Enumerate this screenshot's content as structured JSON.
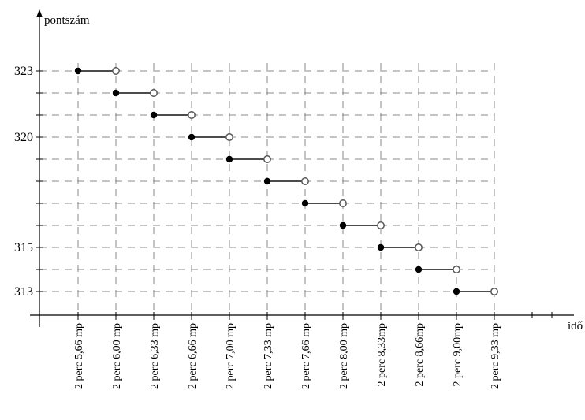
{
  "chart_data": {
    "type": "step",
    "title": "",
    "xlabel": "idő",
    "ylabel": "pontszám",
    "grid": true,
    "x_categories": [
      "2 perc 5,66 mp",
      "2 perc 6,00 mp",
      "2 perc 6,33 mp",
      "2 perc 6,66 mp",
      "2 perc 7,00 mp",
      "2 perc 7,33 mp",
      "2 perc 7,66 mp",
      "2 perc 8,00 mp",
      "2 perc 8,33mp",
      "2 perc 8,66mp",
      "2 perc 9,00mp",
      "2 perc 9,33 mp"
    ],
    "y_ticks": [
      313,
      315,
      320,
      323
    ],
    "ylim": [
      312,
      324
    ],
    "segments": [
      {
        "x_start": 0,
        "x_end": 1,
        "y": 323
      },
      {
        "x_start": 1,
        "x_end": 2,
        "y": 322
      },
      {
        "x_start": 2,
        "x_end": 3,
        "y": 321
      },
      {
        "x_start": 3,
        "x_end": 4,
        "y": 320
      },
      {
        "x_start": 4,
        "x_end": 5,
        "y": 319
      },
      {
        "x_start": 5,
        "x_end": 6,
        "y": 318
      },
      {
        "x_start": 6,
        "x_end": 7,
        "y": 317
      },
      {
        "x_start": 7,
        "x_end": 8,
        "y": 316
      },
      {
        "x_start": 8,
        "x_end": 9,
        "y": 315
      },
      {
        "x_start": 9,
        "x_end": 10,
        "y": 314
      },
      {
        "x_start": 10,
        "x_end": 11,
        "y": 313
      }
    ]
  }
}
